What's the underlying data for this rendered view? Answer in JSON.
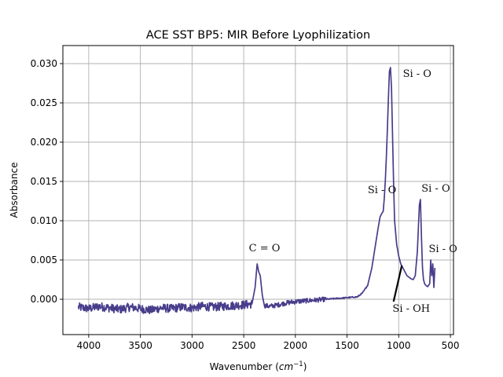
{
  "chart_data": {
    "type": "line",
    "title": "ACE SST BP5: MIR Before Lyophilization",
    "xlabel": "Wavenumber",
    "xlabel_unit_base": "cm",
    "xlabel_unit_exp": "−1",
    "ylabel": "Absorbance",
    "xlim": [
      4250,
      470
    ],
    "ylim": [
      -0.0045,
      0.0323
    ],
    "x_inverted": true,
    "grid": true,
    "x_ticks": [
      4000,
      3500,
      3000,
      2500,
      2000,
      1500,
      1000,
      500
    ],
    "x_tick_labels": [
      "4000",
      "3500",
      "3000",
      "2500",
      "2000",
      "1500",
      "1000",
      "500"
    ],
    "y_ticks": [
      0.0,
      0.005,
      0.01,
      0.015,
      0.02,
      0.025,
      0.03
    ],
    "y_tick_labels": [
      "0.000",
      "0.005",
      "0.010",
      "0.015",
      "0.020",
      "0.025",
      "0.030"
    ],
    "series": [
      {
        "color": "#483D8B",
        "x": [
          4100,
          4000,
          3900,
          3800,
          3700,
          3600,
          3500,
          3400,
          3300,
          3200,
          3100,
          3000,
          2900,
          2800,
          2700,
          2600,
          2500,
          2420,
          2390,
          2370,
          2355,
          2340,
          2320,
          2300,
          2250,
          2200,
          2100,
          2000,
          1900,
          1800,
          1700,
          1600,
          1500,
          1400,
          1350,
          1300,
          1260,
          1230,
          1200,
          1180,
          1160,
          1150,
          1140,
          1130,
          1120,
          1110,
          1100,
          1090,
          1080,
          1070,
          1060,
          1050,
          1040,
          1020,
          1000,
          980,
          960,
          940,
          920,
          900,
          880,
          860,
          840,
          820,
          800,
          790,
          780,
          770,
          760,
          750,
          740,
          720,
          700,
          690,
          680,
          670,
          660,
          650
        ],
        "y": [
          -0.001,
          -0.0012,
          -0.0009,
          -0.0011,
          -0.0013,
          -0.001,
          -0.0012,
          -0.0014,
          -0.0011,
          -0.0012,
          -0.001,
          -0.0011,
          -0.0009,
          -0.001,
          -0.0009,
          -0.0008,
          -0.0007,
          -0.0006,
          0.0015,
          0.0045,
          0.0035,
          0.003,
          0.0005,
          -0.0008,
          -0.0009,
          -0.0008,
          -0.0005,
          -0.0003,
          -0.0002,
          -0.0001,
          0.0,
          0.0001,
          0.0002,
          0.0003,
          0.0008,
          0.0018,
          0.004,
          0.0065,
          0.009,
          0.0105,
          0.011,
          0.0112,
          0.0128,
          0.015,
          0.018,
          0.0215,
          0.0255,
          0.029,
          0.0295,
          0.027,
          0.021,
          0.015,
          0.01,
          0.007,
          0.0055,
          0.0045,
          0.004,
          0.0035,
          0.003,
          0.0028,
          0.0026,
          0.0025,
          0.003,
          0.006,
          0.012,
          0.0127,
          0.008,
          0.004,
          0.0025,
          0.002,
          0.0018,
          0.0016,
          0.002,
          0.005,
          0.003,
          0.0045,
          0.0015,
          0.004
        ]
      }
    ],
    "annotations": [
      {
        "text": "Si - O",
        "x": 960,
        "y": 0.0283
      },
      {
        "text": "Si - O",
        "x": 1300,
        "y": 0.0135
      },
      {
        "text": "Si - O",
        "x": 780,
        "y": 0.0137
      },
      {
        "text": "C = O",
        "x": 2450,
        "y": 0.0061
      },
      {
        "text": "Si - O",
        "x": 710,
        "y": 0.006
      },
      {
        "text": "Si - OH",
        "x": 1060,
        "y": -0.0016
      }
    ],
    "arrow": {
      "from": [
        1050,
        -0.0003
      ],
      "to": [
        970,
        0.0043
      ]
    }
  }
}
